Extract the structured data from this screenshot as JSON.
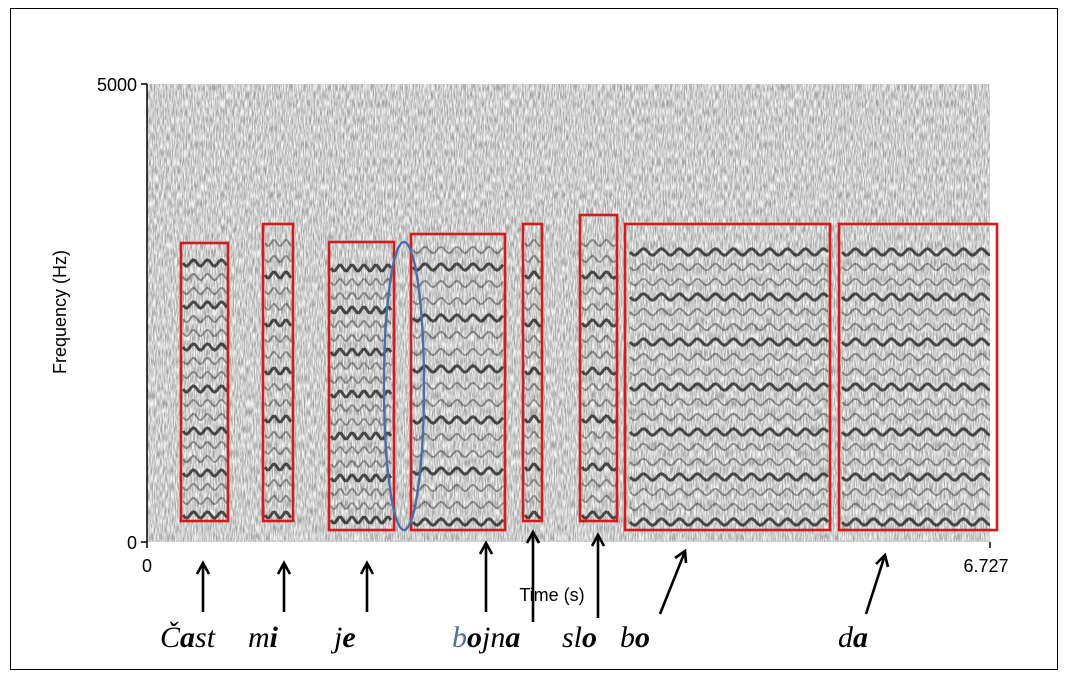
{
  "axes": {
    "x_label": "Time (s)",
    "y_label": "Frequency (Hz)",
    "x_min_label": "0",
    "x_max_label": "6.727",
    "y_min_label": "0",
    "y_max_label": "5000"
  },
  "words": [
    {
      "id": "cast",
      "parts": [
        {
          "t": "Č",
          "style": "normal"
        },
        {
          "t": "a",
          "style": "bold"
        },
        {
          "t": "st",
          "style": "normal"
        }
      ]
    },
    {
      "id": "mi",
      "parts": [
        {
          "t": "m",
          "style": "normal"
        },
        {
          "t": "i",
          "style": "bold"
        }
      ]
    },
    {
      "id": "je",
      "parts": [
        {
          "t": "j",
          "style": "normal"
        },
        {
          "t": "e",
          "style": "bold"
        }
      ]
    },
    {
      "id": "bojna",
      "parts": [
        {
          "t": "b",
          "style": "blue"
        },
        {
          "t": "o",
          "style": "bold"
        },
        {
          "t": "jn",
          "style": "normal"
        },
        {
          "t": "a",
          "style": "bold"
        }
      ]
    },
    {
      "id": "slo",
      "parts": [
        {
          "t": "sl",
          "style": "normal"
        },
        {
          "t": "o",
          "style": "bold"
        }
      ]
    },
    {
      "id": "bo",
      "parts": [
        {
          "t": "b",
          "style": "normal"
        },
        {
          "t": "o",
          "style": "bold"
        }
      ]
    },
    {
      "id": "da",
      "parts": [
        {
          "t": "d",
          "style": "normal"
        },
        {
          "t": "a",
          "style": "bold"
        }
      ]
    }
  ],
  "colors": {
    "box": "#d7191c",
    "ellipse": "#4a6fa5",
    "spectrogram": "#1a1a1a"
  }
}
